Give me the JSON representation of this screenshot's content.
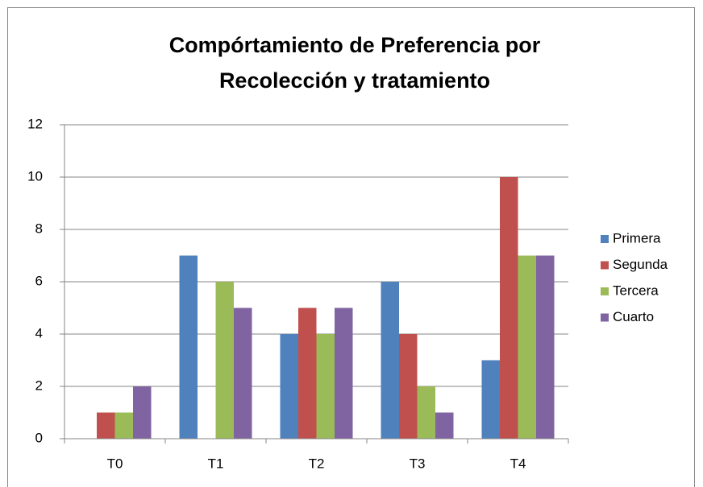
{
  "chart_data": {
    "type": "bar",
    "title": [
      "Compórtamiento de Preferencia por",
      "Recolección y tratamiento"
    ],
    "categories": [
      "T0",
      "T1",
      "T2",
      "T3",
      "T4"
    ],
    "series": [
      {
        "name": "Primera",
        "color": "#4f81bd",
        "values": [
          0,
          7,
          4,
          6,
          3
        ]
      },
      {
        "name": "Segunda",
        "color": "#c0504d",
        "values": [
          1,
          0,
          5,
          4,
          10
        ]
      },
      {
        "name": "Tercera",
        "color": "#9bbb59",
        "values": [
          1,
          6,
          4,
          2,
          7
        ]
      },
      {
        "name": "Cuarto",
        "color": "#8064a2",
        "values": [
          2,
          5,
          5,
          1,
          7
        ]
      }
    ],
    "ylim": [
      0,
      12
    ],
    "yticks": [
      0,
      2,
      4,
      6,
      8,
      10,
      12
    ],
    "grid": true,
    "legend": "right"
  }
}
